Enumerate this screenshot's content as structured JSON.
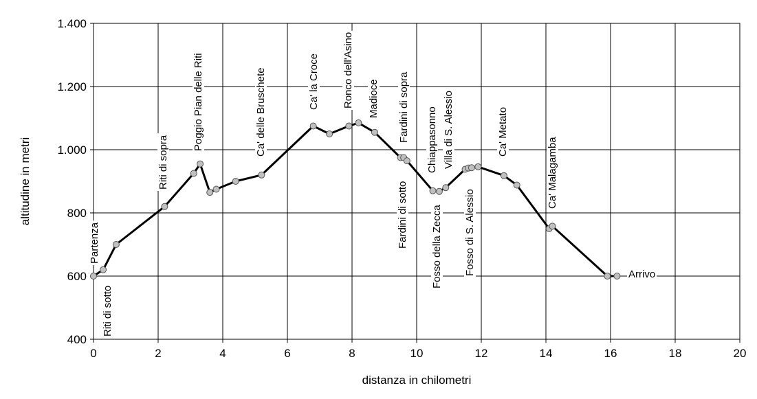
{
  "chart_data": {
    "type": "line",
    "xlabel": "distanza in chilometri",
    "ylabel": "altitudine  in metri",
    "xlim": [
      0,
      20
    ],
    "ylim": [
      400,
      1400
    ],
    "xticks": [
      0,
      2,
      4,
      6,
      8,
      10,
      12,
      14,
      16,
      18,
      20
    ],
    "yticks": [
      400,
      600,
      800,
      1000,
      1200,
      1400
    ],
    "xtick_labels": [
      "0",
      "2",
      "4",
      "6",
      "8",
      "10",
      "12",
      "14",
      "16",
      "18",
      "20"
    ],
    "ytick_labels": [
      "400",
      "600",
      "800",
      "1.000",
      "1.200",
      "1.400"
    ],
    "grid": true,
    "series": [
      {
        "x": [
          0,
          0.3,
          0.7,
          2.2,
          3.1,
          3.3,
          3.6,
          3.8,
          4.4,
          5.2,
          6.8,
          7.3,
          7.9,
          8.2,
          8.7,
          9.5,
          9.6,
          9.7,
          10.5,
          10.7,
          10.9,
          11.5,
          11.6,
          11.7,
          11.9,
          12.7,
          13.1,
          14.1,
          14.2,
          15.9,
          16.2
        ],
        "y": [
          600,
          620,
          700,
          820,
          925,
          955,
          865,
          875,
          900,
          920,
          1075,
          1050,
          1075,
          1085,
          1055,
          975,
          975,
          965,
          870,
          868,
          880,
          938,
          942,
          943,
          946,
          918,
          888,
          750,
          758,
          600,
          600
        ]
      }
    ],
    "annotations": [
      {
        "text": "Partenza"
      },
      {
        "text": "Riti di sotto"
      },
      {
        "text": "Riti di sopra"
      },
      {
        "text": "Poggio Pian delle Riti"
      },
      {
        "text": "Ca' delle Bruschete"
      },
      {
        "text": "Ca' la Croce"
      },
      {
        "text": "Ronco dell'Asino"
      },
      {
        "text": "Madioce"
      },
      {
        "text": "Fardini di sopra"
      },
      {
        "text": "Fardini di sotto"
      },
      {
        "text": "Chiappasonno"
      },
      {
        "text": "Fosso della Zecca"
      },
      {
        "text": "Villa di S. Alessio"
      },
      {
        "text": "Fosso di S. Alessio"
      },
      {
        "text": "Ca' Metato"
      },
      {
        "text": "Ca' Malagamba"
      },
      {
        "text": "Arrivo"
      }
    ]
  }
}
